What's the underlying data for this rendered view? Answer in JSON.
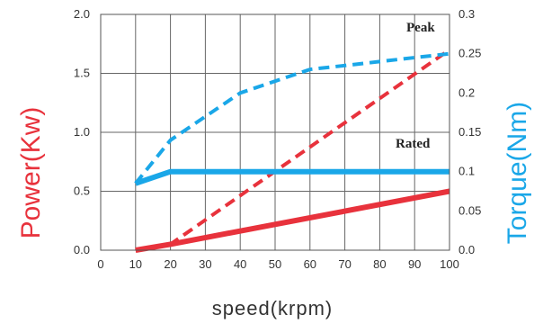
{
  "chart_data": {
    "type": "line",
    "xlabel": "speed(krpm)",
    "ylabel_left": "Power(Kw)",
    "ylabel_right": "Torque(Nm)",
    "x_ticks": [
      "0",
      "10",
      "20",
      "30",
      "40",
      "50",
      "60",
      "70",
      "80",
      "90",
      "100"
    ],
    "y_left_ticks": [
      "0.0",
      "0.5",
      "1.0",
      "1.5",
      "2.0"
    ],
    "y_right_ticks": [
      "0.0",
      "0.05",
      "0.1",
      "0.15",
      "0.2",
      "0.25",
      "0.3"
    ],
    "xlim": [
      0,
      100
    ],
    "ylim_left": [
      0,
      2.0
    ],
    "ylim_right": [
      0,
      0.3
    ],
    "grid": true,
    "annotations": [
      "Peak",
      "Rated"
    ],
    "colors": {
      "power": "#e8323c",
      "torque": "#1aa7e8"
    },
    "series": [
      {
        "quantity": "power",
        "axis": "left",
        "style": "dashed",
        "label": "Peak",
        "x": [
          10,
          20,
          100
        ],
        "values": [
          0.0,
          0.05,
          1.7
        ]
      },
      {
        "quantity": "power",
        "axis": "left",
        "style": "solid",
        "label": "Rated",
        "x": [
          10,
          20,
          100
        ],
        "values": [
          0.0,
          0.05,
          0.5
        ]
      },
      {
        "quantity": "torque",
        "axis": "right",
        "style": "dashed",
        "label": "Peak",
        "x": [
          10,
          20,
          30,
          40,
          50,
          60,
          70,
          80,
          90,
          100
        ],
        "values": [
          0.085,
          0.14,
          0.17,
          0.2,
          0.215,
          0.23,
          0.235,
          0.24,
          0.245,
          0.25
        ]
      },
      {
        "quantity": "torque",
        "axis": "right",
        "style": "solid",
        "label": "Rated",
        "x": [
          10,
          20,
          100
        ],
        "values": [
          0.085,
          0.1,
          0.1
        ]
      }
    ]
  }
}
